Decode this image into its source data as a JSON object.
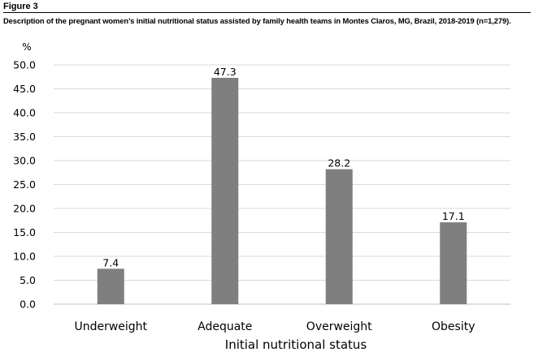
{
  "figure": {
    "label": "Figure 3",
    "caption": "Description of the pregnant women’s initial nutritional status assisted by family health teams in Montes Claros, MG, Brazil, 2018-2019 (n=1,279)."
  },
  "colors": {
    "bar": "#7f7f7f",
    "grid": "#d9d9d9",
    "axis": "#bfbfbf"
  },
  "chart_data": {
    "type": "bar",
    "categories": [
      "Underweight",
      "Adequate",
      "Overweight",
      "Obesity"
    ],
    "values": [
      7.4,
      47.3,
      28.2,
      17.1
    ],
    "value_labels": [
      "7.4",
      "47.3",
      "28.2",
      "17.1"
    ],
    "title": "",
    "xlabel": "Initial nutritional status",
    "ylabel": "%",
    "ylim": [
      0,
      50
    ],
    "yticks": [
      "0.0",
      "5.0",
      "10.0",
      "15.0",
      "20.0",
      "25.0",
      "30.0",
      "35.0",
      "40.0",
      "45.0",
      "50.0"
    ],
    "grid": true,
    "legend": false
  }
}
